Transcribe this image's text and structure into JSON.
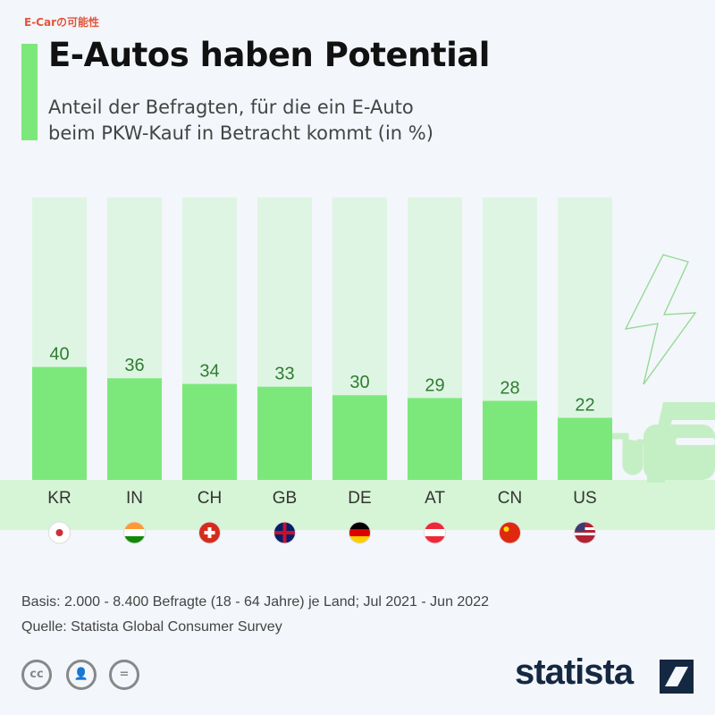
{
  "tag": "E-Carの可能性",
  "title": "E-Autos haben Potential",
  "subtitle_line1": "Anteil der Befragten, für die ein E-Auto",
  "subtitle_line2": "beim PKW-Kauf in Betracht kommt (in %)",
  "chart_data": {
    "type": "bar",
    "title": "E-Autos haben Potential",
    "categories": [
      "KR",
      "IN",
      "CH",
      "GB",
      "DE",
      "AT",
      "CN",
      "US"
    ],
    "values": [
      40,
      36,
      34,
      33,
      30,
      29,
      28,
      22
    ],
    "ylim": [
      0,
      100
    ],
    "grid": false,
    "bar_color": "#7ce87c",
    "track_color": "#dff5e3",
    "label_color": "#2e7d32",
    "flags": [
      "south-korea-flag",
      "india-flag",
      "switzerland-flag",
      "uk-flag",
      "germany-flag",
      "austria-flag",
      "china-flag",
      "usa-flag"
    ]
  },
  "footer": {
    "basis": "Basis: 2.000 - 8.400 Befragte (18 - 64 Jahre) je Land; Jul 2021 - Jun 2022",
    "source": "Quelle: Statista Global Consumer Survey"
  },
  "license": {
    "cc": "cc",
    "eq": "="
  },
  "brand": "statista"
}
